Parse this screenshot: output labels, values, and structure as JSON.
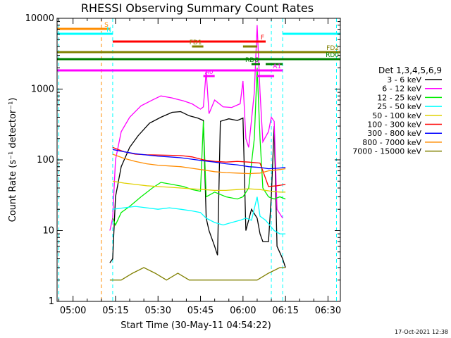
{
  "chart_data": {
    "type": "line",
    "title": "RHESSI Observing Summary Count Rates",
    "xlabel": "Start Time (30-May-11 04:54:22)",
    "ylabel": "Count Rate (s⁻¹ detector⁻¹)",
    "ylog": true,
    "ylim": [
      1,
      10000
    ],
    "xlim": [
      "04:54:22",
      "06:34:22"
    ],
    "x_ticks": [
      "05:00",
      "05:15",
      "05:30",
      "05:45",
      "06:00",
      "06:15",
      "06:30"
    ],
    "y_ticks": [
      "1",
      "10",
      "100",
      "1000",
      "10000"
    ],
    "grid": false,
    "legend": {
      "placement": "right",
      "title": "Det 1,3,4,5,6,9",
      "entries": [
        {
          "label": "3 - 6 keV",
          "color": "#000000"
        },
        {
          "label": "6 - 12 keV",
          "color": "#ff00ff"
        },
        {
          "label": "12 - 25 keV",
          "color": "#00ee00"
        },
        {
          "label": "25 - 50 keV",
          "color": "#00ffff"
        },
        {
          "label": "50 - 100 keV",
          "color": "#e0d000"
        },
        {
          "label": "100 - 300 keV",
          "color": "#ff0000"
        },
        {
          "label": "300 - 800 keV",
          "color": "#0000ff"
        },
        {
          "label": "800 - 7000 keV",
          "color": "#ff8c00"
        },
        {
          "label": "7000 - 15000 keV",
          "color": "#808000"
        }
      ]
    },
    "series": [
      {
        "name": "3 - 6 keV",
        "color": "#000000",
        "points": [
          [
            "05:13",
            3.5
          ],
          [
            "05:14",
            4
          ],
          [
            "05:15",
            30
          ],
          [
            "05:17",
            80
          ],
          [
            "05:20",
            150
          ],
          [
            "05:23",
            220
          ],
          [
            "05:27",
            330
          ],
          [
            "05:31",
            400
          ],
          [
            "05:35",
            470
          ],
          [
            "05:38",
            480
          ],
          [
            "05:41",
            420
          ],
          [
            "05:44",
            390
          ],
          [
            "05:46",
            360
          ],
          [
            "05:47",
            15
          ],
          [
            "05:48",
            10
          ],
          [
            "05:50",
            6
          ],
          [
            "05:51",
            4.5
          ],
          [
            "05:52",
            350
          ],
          [
            "05:55",
            380
          ],
          [
            "05:58",
            360
          ],
          [
            "06:00",
            390
          ],
          [
            "06:01",
            10
          ],
          [
            "06:03",
            20
          ],
          [
            "06:05",
            15
          ],
          [
            "06:06",
            9
          ],
          [
            "06:07",
            7
          ],
          [
            "06:09",
            7
          ],
          [
            "06:10",
            30
          ],
          [
            "06:11",
            300
          ],
          [
            "06:12",
            6
          ],
          [
            "06:14",
            4
          ],
          [
            "06:15",
            3
          ]
        ]
      },
      {
        "name": "6 - 12 keV",
        "color": "#ff00ff",
        "points": [
          [
            "05:13",
            10
          ],
          [
            "05:14",
            15
          ],
          [
            "05:15",
            100
          ],
          [
            "05:17",
            250
          ],
          [
            "05:20",
            400
          ],
          [
            "05:24",
            580
          ],
          [
            "05:28",
            700
          ],
          [
            "05:31",
            800
          ],
          [
            "05:35",
            750
          ],
          [
            "05:39",
            680
          ],
          [
            "05:42",
            620
          ],
          [
            "05:45",
            520
          ],
          [
            "05:46",
            560
          ],
          [
            "05:47",
            1800
          ],
          [
            "05:48",
            450
          ],
          [
            "05:50",
            700
          ],
          [
            "05:53",
            560
          ],
          [
            "05:56",
            550
          ],
          [
            "05:59",
            620
          ],
          [
            "06:00",
            1300
          ],
          [
            "06:01",
            200
          ],
          [
            "06:02",
            150
          ],
          [
            "06:04",
            900
          ],
          [
            "06:05",
            8000
          ],
          [
            "06:06",
            900
          ],
          [
            "06:07",
            180
          ],
          [
            "06:09",
            250
          ],
          [
            "06:10",
            400
          ],
          [
            "06:11",
            350
          ],
          [
            "06:12",
            20
          ],
          [
            "06:14",
            15
          ]
        ]
      },
      {
        "name": "12 - 25 keV",
        "color": "#00ee00",
        "points": [
          [
            "05:14",
            15
          ],
          [
            "05:15",
            12
          ],
          [
            "05:17",
            18
          ],
          [
            "05:20",
            22
          ],
          [
            "05:24",
            30
          ],
          [
            "05:28",
            40
          ],
          [
            "05:31",
            48
          ],
          [
            "05:35",
            45
          ],
          [
            "05:39",
            42
          ],
          [
            "05:42",
            38
          ],
          [
            "05:45",
            36
          ],
          [
            "05:46",
            350
          ],
          [
            "05:47",
            30
          ],
          [
            "05:50",
            35
          ],
          [
            "05:54",
            30
          ],
          [
            "05:58",
            28
          ],
          [
            "06:00",
            30
          ],
          [
            "06:02",
            40
          ],
          [
            "06:04",
            200
          ],
          [
            "06:05",
            2000
          ],
          [
            "06:06",
            200
          ],
          [
            "06:07",
            40
          ],
          [
            "06:09",
            30
          ],
          [
            "06:11",
            28
          ],
          [
            "06:13",
            30
          ],
          [
            "06:15",
            28
          ]
        ]
      },
      {
        "name": "25 - 50 keV",
        "color": "#00ffff",
        "points": [
          [
            "05:14",
            20
          ],
          [
            "05:18",
            21
          ],
          [
            "05:22",
            22
          ],
          [
            "05:26",
            21
          ],
          [
            "05:30",
            20
          ],
          [
            "05:34",
            21
          ],
          [
            "05:38",
            20
          ],
          [
            "05:42",
            19
          ],
          [
            "05:45",
            18
          ],
          [
            "05:47",
            15
          ],
          [
            "05:50",
            13
          ],
          [
            "05:53",
            12
          ],
          [
            "05:56",
            13
          ],
          [
            "05:59",
            14
          ],
          [
            "06:01",
            15
          ],
          [
            "06:03",
            14
          ],
          [
            "06:05",
            30
          ],
          [
            "06:06",
            16
          ],
          [
            "06:08",
            14
          ],
          [
            "06:11",
            10
          ],
          [
            "06:13",
            9
          ],
          [
            "06:15",
            9
          ]
        ]
      },
      {
        "name": "50 - 100 keV",
        "color": "#e0d000",
        "points": [
          [
            "05:14",
            50
          ],
          [
            "05:18",
            47
          ],
          [
            "05:22",
            45
          ],
          [
            "05:26",
            43
          ],
          [
            "05:30",
            42
          ],
          [
            "05:34",
            41
          ],
          [
            "05:38",
            40
          ],
          [
            "05:42",
            39
          ],
          [
            "05:46",
            38
          ],
          [
            "05:50",
            37
          ],
          [
            "05:54",
            37
          ],
          [
            "05:58",
            38
          ],
          [
            "06:02",
            39
          ],
          [
            "06:06",
            38
          ],
          [
            "06:10",
            36
          ],
          [
            "06:13",
            35
          ],
          [
            "06:15",
            35
          ]
        ]
      },
      {
        "name": "100 - 300 keV",
        "color": "#ff0000",
        "points": [
          [
            "05:14",
            150
          ],
          [
            "05:18",
            130
          ],
          [
            "05:22",
            120
          ],
          [
            "05:26",
            118
          ],
          [
            "05:30",
            117
          ],
          [
            "05:34",
            116
          ],
          [
            "05:38",
            115
          ],
          [
            "05:42",
            110
          ],
          [
            "05:46",
            100
          ],
          [
            "05:50",
            95
          ],
          [
            "05:54",
            93
          ],
          [
            "05:58",
            95
          ],
          [
            "06:02",
            93
          ],
          [
            "06:06",
            90
          ],
          [
            "06:09",
            42
          ],
          [
            "06:12",
            43
          ],
          [
            "06:15",
            45
          ]
        ]
      },
      {
        "name": "300 - 800 keV",
        "color": "#0000ff",
        "points": [
          [
            "05:14",
            140
          ],
          [
            "05:18",
            130
          ],
          [
            "05:22",
            122
          ],
          [
            "05:26",
            117
          ],
          [
            "05:30",
            113
          ],
          [
            "05:34",
            110
          ],
          [
            "05:38",
            107
          ],
          [
            "05:42",
            102
          ],
          [
            "05:46",
            97
          ],
          [
            "05:50",
            93
          ],
          [
            "05:54",
            88
          ],
          [
            "05:58",
            85
          ],
          [
            "06:02",
            80
          ],
          [
            "06:06",
            78
          ],
          [
            "06:09",
            75
          ],
          [
            "06:12",
            76
          ],
          [
            "06:15",
            78
          ]
        ]
      },
      {
        "name": "800 - 7000 keV",
        "color": "#ff8c00",
        "points": [
          [
            "05:14",
            120
          ],
          [
            "05:18",
            105
          ],
          [
            "05:22",
            95
          ],
          [
            "05:26",
            88
          ],
          [
            "05:30",
            84
          ],
          [
            "05:34",
            82
          ],
          [
            "05:38",
            80
          ],
          [
            "05:42",
            76
          ],
          [
            "05:46",
            72
          ],
          [
            "05:50",
            68
          ],
          [
            "05:54",
            66
          ],
          [
            "05:58",
            65
          ],
          [
            "06:02",
            64
          ],
          [
            "06:06",
            65
          ],
          [
            "06:09",
            70
          ],
          [
            "06:12",
            72
          ],
          [
            "06:15",
            75
          ]
        ]
      },
      {
        "name": "7000 - 15000 keV",
        "color": "#808000",
        "points": [
          [
            "05:13",
            2
          ],
          [
            "05:17",
            2
          ],
          [
            "05:21",
            2.5
          ],
          [
            "05:25",
            3
          ],
          [
            "05:29",
            2.5
          ],
          [
            "05:33",
            2
          ],
          [
            "05:37",
            2.5
          ],
          [
            "05:41",
            2
          ],
          [
            "05:45",
            2
          ],
          [
            "05:49",
            2
          ],
          [
            "05:53",
            2
          ],
          [
            "05:57",
            2
          ],
          [
            "06:01",
            2
          ],
          [
            "06:05",
            2
          ],
          [
            "06:09",
            2.5
          ],
          [
            "06:13",
            3
          ],
          [
            "06:15",
            3
          ]
        ]
      }
    ],
    "flag_bars": [
      {
        "label": "S",
        "color": "#ff8c00",
        "start": "04:54:22",
        "end": "05:13"
      },
      {
        "label": "N",
        "color": "#00ffff",
        "start": "04:54:22",
        "end": "05:14"
      },
      {
        "label": "N",
        "color": "#00ffff",
        "start": "06:14",
        "end": "06:34:22",
        "unlabeled": true
      },
      {
        "label": "F",
        "color": "#ff0000",
        "start": "05:14",
        "end": "06:08"
      },
      {
        "label": "FD1",
        "color": "#808000",
        "start": "05:42",
        "end": "05:46"
      },
      {
        "label": "FD1",
        "color": "#808000",
        "start": "06:00",
        "end": "06:05",
        "unlabeled": true
      },
      {
        "label": "FD2",
        "color": "#808000",
        "start": "04:54:22",
        "end": "06:34:22"
      },
      {
        "label": "RD0",
        "color": "#008000",
        "start": "04:54:22",
        "end": "06:34:22"
      },
      {
        "label": "RD6",
        "color": "#008000",
        "start": "06:03",
        "end": "06:06"
      },
      {
        "label": "RD6",
        "color": "#008000",
        "start": "06:08",
        "end": "06:14",
        "unlabeled": true
      },
      {
        "label": "A1",
        "color": "#ff00ff",
        "start": "04:54:22",
        "end": "06:14"
      },
      {
        "label": "A0",
        "color": "#ff00ff",
        "start": "05:46",
        "end": "05:50"
      },
      {
        "label": "A0",
        "color": "#ff00ff",
        "start": "06:05",
        "end": "06:11",
        "unlabeled": true
      }
    ],
    "vertical_markers": [
      {
        "time": "04:55",
        "color": "#00ffff"
      },
      {
        "time": "05:10",
        "color": "#ff8c00"
      },
      {
        "time": "05:14",
        "color": "#00ffff"
      },
      {
        "time": "06:10",
        "color": "#00ffff"
      },
      {
        "time": "06:14",
        "color": "#00ffff"
      },
      {
        "time": "06:33",
        "color": "#00ffff"
      }
    ]
  },
  "timestamp": "17-Oct-2021 12:38"
}
